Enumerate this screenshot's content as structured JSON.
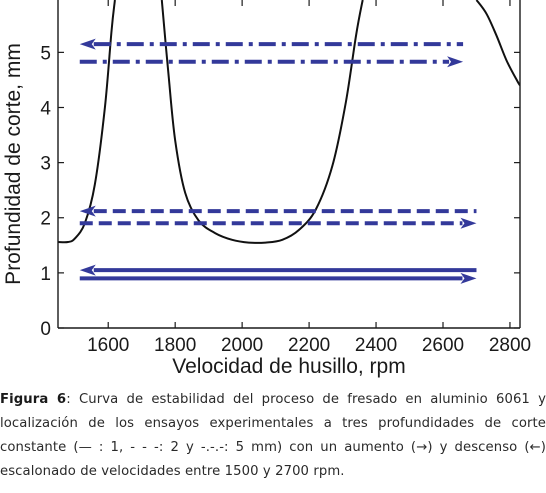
{
  "chart_data": {
    "type": "line",
    "xlabel": "Velocidad de husillo, rpm",
    "ylabel": "Profundidad de corte, mm",
    "xlim": [
      1450,
      2830
    ],
    "ylim": [
      0,
      5.95
    ],
    "xticks": [
      1600,
      1800,
      2000,
      2200,
      2400,
      2600,
      2800
    ],
    "yticks": [
      0,
      1,
      2,
      3,
      4,
      5
    ],
    "grid": false,
    "stability_curve": {
      "color": "#111111",
      "lobes": [
        {
          "x": [
            1450,
            1480,
            1500,
            1530,
            1560,
            1590,
            1610,
            1620
          ],
          "y": [
            1.56,
            1.56,
            1.62,
            1.9,
            2.6,
            4.0,
            5.4,
            5.95
          ]
        },
        {
          "x": [
            1760,
            1780,
            1800,
            1830,
            1870,
            1920,
            1970,
            2020,
            2070,
            2120,
            2170,
            2220,
            2270,
            2310,
            2340,
            2360
          ],
          "y": [
            5.95,
            4.6,
            3.4,
            2.45,
            1.95,
            1.72,
            1.6,
            1.55,
            1.55,
            1.6,
            1.78,
            2.15,
            2.95,
            4.1,
            5.3,
            5.95
          ]
        },
        {
          "x": [
            2700,
            2730,
            2760,
            2790,
            2820,
            2830
          ],
          "y": [
            5.95,
            5.7,
            5.3,
            4.85,
            4.5,
            4.4
          ]
        }
      ]
    },
    "series": [
      {
        "depth": 1,
        "style": "solid",
        "direction": "increase",
        "x": [
          1515,
          2700
        ],
        "y": [
          0.9,
          0.9
        ]
      },
      {
        "depth": 1,
        "style": "solid",
        "direction": "decrease",
        "x": [
          1515,
          2700
        ],
        "y": [
          1.05,
          1.05
        ]
      },
      {
        "depth": 2,
        "style": "dashed",
        "direction": "increase",
        "x": [
          1515,
          2700
        ],
        "y": [
          1.9,
          1.9
        ]
      },
      {
        "depth": 2,
        "style": "dashed",
        "direction": "decrease",
        "x": [
          1515,
          2700
        ],
        "y": [
          2.12,
          2.12
        ]
      },
      {
        "depth": 5,
        "style": "dashdot",
        "direction": "increase",
        "x": [
          1515,
          2660
        ],
        "y": [
          4.83,
          4.83
        ]
      },
      {
        "depth": 5,
        "style": "dashdot",
        "direction": "decrease",
        "x": [
          1515,
          2660
        ],
        "y": [
          5.15,
          5.15
        ]
      }
    ],
    "colors": {
      "arrows": "#33399a",
      "curve": "#111111",
      "axes": "#1a1a1a"
    }
  },
  "caption": {
    "figure_label": "Figura 6",
    "text": ": Curva de estabilidad del proceso de fresado en aluminio 6061 y localización de los ensayos experimentales a tres profundidades de corte constante (— : 1, - - -: 2 y -.-.-: 5 mm) con un aumento (→) y descenso (←) escalonado de velocidades entre 1500 y 2700 rpm."
  }
}
